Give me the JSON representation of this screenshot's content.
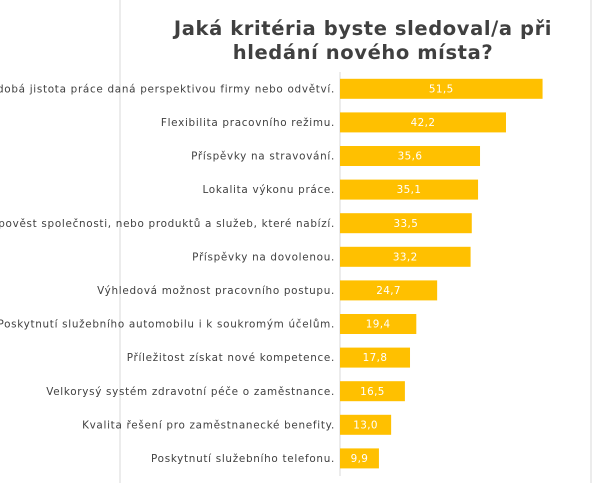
{
  "chart_data": {
    "type": "bar",
    "orientation": "horizontal",
    "title": "Jaká kritéria byste sledoval/a při hledání nového místa?",
    "title_lines": [
      "Jaká kritéria byste sledoval/a při",
      "hledání nového místa?"
    ],
    "categories": [
      "Dlouhodobá jistota práce daná perspektivou firmy nebo odvětví.",
      "Flexibilita pracovního režimu.",
      "Příspěvky na stravování.",
      "Lokalita výkonu práce.",
      "Dobrá pověst společnosti, nebo produktů a služeb, které nabízí.",
      "Příspěvky na dovolenou.",
      "Výhledová možnost pracovního postupu.",
      "Poskytnutí služebního automobilu i k soukromým účelům.",
      "Příležitost získat nové kompetence.",
      "Velkorysý systém zdravotní péče o zaměstnance.",
      "Kvalita řešení pro zaměstnanecké benefity.",
      "Poskytnutí služebního telefonu."
    ],
    "values": [
      51.5,
      42.2,
      35.6,
      35.1,
      33.5,
      33.2,
      24.7,
      19.4,
      17.8,
      16.5,
      13.0,
      9.9
    ],
    "value_labels": [
      "51,5",
      "42,2",
      "35,6",
      "35,1",
      "33,5",
      "33,2",
      "24,7",
      "19,4",
      "17,8",
      "16,5",
      "13,0",
      "9,9"
    ],
    "xlabel": "",
    "ylabel": "",
    "xlim": [
      0,
      60
    ],
    "grid": false,
    "legend": "none",
    "colors": {
      "bar": "#ffc000",
      "value_text": "#ffffff",
      "label_text": "#404040",
      "title_text": "#404040",
      "axis": "#d9d9d9",
      "background": "#ffffff"
    }
  }
}
